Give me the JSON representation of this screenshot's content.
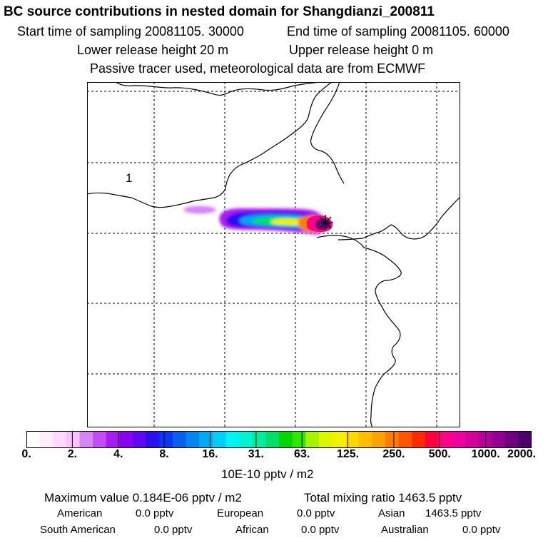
{
  "header": {
    "title": "BC  source contributions in nested domain for Shangdianzi_200811",
    "start_sampling": "Start time of sampling 20081105. 30000",
    "end_sampling": "End time of sampling 20081105. 60000",
    "lower_release": "Lower release height   20 m",
    "upper_release": "Upper release height    0 m",
    "tracer_note": "Passive tracer used, meteorological data are from ECMWF"
  },
  "map": {
    "region_label": "1",
    "receptor_marker": "star-icon"
  },
  "colorbar": {
    "ticks": [
      "0.",
      "2.",
      "4.",
      "8.",
      "16.",
      "31.",
      "63.",
      "125.",
      "250.",
      "500.",
      "1000.",
      "2000."
    ],
    "units": "10E-10 pptv / m2",
    "colors": [
      "#ffffff",
      "#ffeeff",
      "#ffd9ff",
      "#fbc3fb",
      "#d784f5",
      "#c44cf4",
      "#a91cf0",
      "#8a00f0",
      "#5f07ef",
      "#2b10ef",
      "#0838ef",
      "#0a60ee",
      "#0086f0",
      "#00aaf2",
      "#00cef6",
      "#00f4f4",
      "#00f2d0",
      "#00ee9c",
      "#00e066",
      "#00d500",
      "#33e600",
      "#a6f200",
      "#ddf500",
      "#f4f100",
      "#ffd800",
      "#ffbe00",
      "#ffa200",
      "#ff7d00",
      "#ff5500",
      "#ff2a00",
      "#ff0040",
      "#ff0088",
      "#ee00a0",
      "#d4009c",
      "#b60098",
      "#920092",
      "#6e0080",
      "#4a006a"
    ]
  },
  "stats": {
    "max_value": "Maximum value  0.184E-06 pptv / m2",
    "total_mixing": "Total mixing ratio     1463.5 pptv",
    "american_label": "American",
    "american_value": "0.0 pptv",
    "european_label": "European",
    "european_value": "0.0 pptv",
    "asian_label": "Asian",
    "asian_value": "1463.5 pptv",
    "south_american_label": "South American",
    "south_american_value": "0.0 pptv",
    "african_label": "African",
    "african_value": "0.0 pptv",
    "australian_label": "Australian",
    "australian_value": "0.0 pptv"
  }
}
